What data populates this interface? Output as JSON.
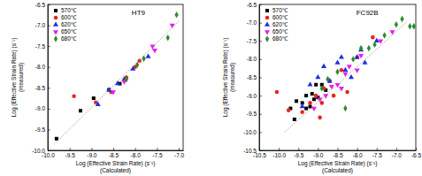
{
  "chart_data": [
    {
      "type": "scatter",
      "title": "HT9",
      "xlabel": [
        "Log (Effective Strain Rate) (s⁻¹)",
        "(Calculated)"
      ],
      "ylabel": [
        "Log (Effective Strain Rate) (s⁻¹)",
        "(measured)"
      ],
      "xlim": [
        -10.0,
        -6.9
      ],
      "xticks": [
        {
          "value": -10,
          "label": "-10.0"
        },
        -9.5,
        {
          "value": -9,
          "label": "-9.0"
        },
        -8.5,
        {
          "value": -8,
          "label": "-8.0"
        },
        -7.5,
        {
          "value": -7,
          "label": "-7.0"
        }
      ],
      "ylim": [
        -10.0,
        -6.5
      ],
      "yticks": [
        {
          "value": -10,
          "label": "-10.0"
        },
        -9.5,
        {
          "value": -9,
          "label": "-9.0"
        },
        -8.5,
        {
          "value": -8,
          "label": "-8.0"
        },
        -7.5,
        {
          "value": -7,
          "label": "-7.0"
        },
        -6.5
      ],
      "grid": false,
      "legend": "upper left",
      "series": [
        {
          "name": "570℃",
          "color": "#000000",
          "marker": "square",
          "x": [
            -9.8,
            -9.25,
            -8.95,
            -8.6,
            -8.35
          ],
          "values": [
            -9.72,
            -9.05,
            -8.75,
            -8.55,
            -8.4
          ]
        },
        {
          "name": "600℃",
          "color": "#e8251c",
          "marker": "circle",
          "x": [
            -9.4,
            -8.9,
            -8.55,
            -8.2,
            -8.0,
            -7.9
          ],
          "values": [
            -8.7,
            -8.85,
            -8.6,
            -8.25,
            -8.0,
            -7.85
          ]
        },
        {
          "name": "620℃",
          "color": "#1f2fe0",
          "marker": "triangle-up",
          "x": [
            -8.85,
            -8.6,
            -8.4,
            -8.25,
            -8.05,
            -7.7
          ],
          "values": [
            -8.9,
            -8.55,
            -8.4,
            -8.3,
            -8.05,
            -7.75
          ]
        },
        {
          "name": "650℃",
          "color": "#e81ee8",
          "marker": "triangle-down",
          "x": [
            -8.5,
            -8.25,
            -7.6,
            -7.55,
            -7.15
          ],
          "values": [
            -8.6,
            -8.35,
            -7.5,
            -7.6,
            -7.0
          ]
        },
        {
          "name": "680℃",
          "color": "#2e8b2e",
          "marker": "diamond",
          "x": [
            -8.2,
            -7.95,
            -7.8,
            -7.25,
            -7.05
          ],
          "values": [
            -8.3,
            -7.95,
            -7.8,
            -7.3,
            -6.75
          ]
        },
        {
          "type": "line",
          "line_style": "dotted",
          "color": "#888888",
          "x": [
            -9.85,
            -7.0
          ],
          "values": [
            -9.85,
            -6.9
          ]
        }
      ]
    },
    {
      "type": "scatter",
      "title": "FC92B",
      "xlabel": [
        "Log (Effective Strain Rate) (s⁻¹)",
        "(Calculated)"
      ],
      "ylabel": [
        "Log (Effective Strain Rate) (s⁻¹)",
        "(measured)"
      ],
      "xlim": [
        -10.5,
        -6.5
      ],
      "xticks": [
        -10.5,
        {
          "value": -10,
          "label": "-10.0"
        },
        -9.5,
        {
          "value": -9,
          "label": "-9.0"
        },
        -8.5,
        {
          "value": -8,
          "label": "-8.0"
        },
        -7.5,
        {
          "value": -7,
          "label": "-7.0"
        },
        -6.5
      ],
      "ylim": [
        -10.5,
        -6.5
      ],
      "yticks": [
        -10.5,
        {
          "value": -10,
          "label": "-10.0"
        },
        -9.5,
        {
          "value": -9,
          "label": "-9.0"
        },
        -8.5,
        {
          "value": -8,
          "label": "-8.0"
        },
        -7.5,
        {
          "value": -7,
          "label": "-7.0"
        },
        -6.5
      ],
      "grid": false,
      "legend": "upper left",
      "series": [
        {
          "name": "570℃",
          "color": "#000000",
          "marker": "square",
          "x": [
            -9.6,
            -9.55,
            -9.4,
            -9.3,
            -9.2,
            -9.15,
            -9.1,
            -9.05,
            -9.0,
            -8.9,
            -8.8,
            -9.3,
            -9.7
          ],
          "values": [
            -9.65,
            -9.15,
            -9.2,
            -9.0,
            -9.3,
            -8.95,
            -9.1,
            -8.7,
            -9.05,
            -8.7,
            -8.85,
            -9.35,
            -9.35
          ]
        },
        {
          "name": "600℃",
          "color": "#e8251c",
          "marker": "circle",
          "x": [
            -10.05,
            -9.75,
            -9.4,
            -9.2,
            -9.05,
            -8.95,
            -8.9,
            -8.85,
            -8.7,
            -8.6,
            -8.4,
            -8.25,
            -8.0,
            -7.6
          ],
          "values": [
            -8.9,
            -9.4,
            -9.45,
            -9.2,
            -9.0,
            -9.6,
            -9.2,
            -8.8,
            -8.6,
            -9.0,
            -8.3,
            -8.9,
            -7.95,
            -7.4
          ]
        },
        {
          "name": "620℃",
          "color": "#1f2fe0",
          "marker": "triangle-up",
          "x": [
            -9.4,
            -9.2,
            -9.0,
            -8.85,
            -8.7,
            -8.5,
            -8.4,
            -8.3,
            -8.15,
            -8.0,
            -7.9,
            -7.8,
            -7.5
          ],
          "values": [
            -9.3,
            -8.7,
            -8.5,
            -8.2,
            -8.6,
            -8.1,
            -7.95,
            -8.3,
            -8.5,
            -7.95,
            -7.75,
            -8.1,
            -7.5
          ]
        },
        {
          "name": "650℃",
          "color": "#e81ee8",
          "marker": "triangle-down",
          "x": [
            -9.1,
            -8.95,
            -8.8,
            -8.65,
            -8.5,
            -8.4,
            -8.3,
            -8.2,
            -8.0,
            -7.9,
            -7.4,
            -7.1
          ],
          "values": [
            -9.35,
            -9.1,
            -9.0,
            -8.75,
            -8.7,
            -8.8,
            -8.4,
            -8.2,
            -8.3,
            -7.9,
            -7.5,
            -7.25
          ]
        },
        {
          "name": "680℃",
          "color": "#2e8b2e",
          "marker": "diamond",
          "x": [
            -8.9,
            -8.75,
            -8.5,
            -8.3,
            -8.1,
            -7.9,
            -7.7,
            -7.55,
            -7.3,
            -7.0,
            -6.85,
            -6.65,
            -6.55
          ],
          "values": [
            -8.8,
            -8.55,
            -8.35,
            -9.35,
            -8.0,
            -7.7,
            -7.7,
            -7.6,
            -7.35,
            -7.05,
            -6.9,
            -7.1,
            -7.1
          ]
        },
        {
          "type": "line",
          "line_style": "dotted",
          "color": "#888888",
          "x": [
            -9.85,
            -6.7
          ],
          "values": [
            -10.0,
            -6.95
          ]
        }
      ]
    }
  ]
}
